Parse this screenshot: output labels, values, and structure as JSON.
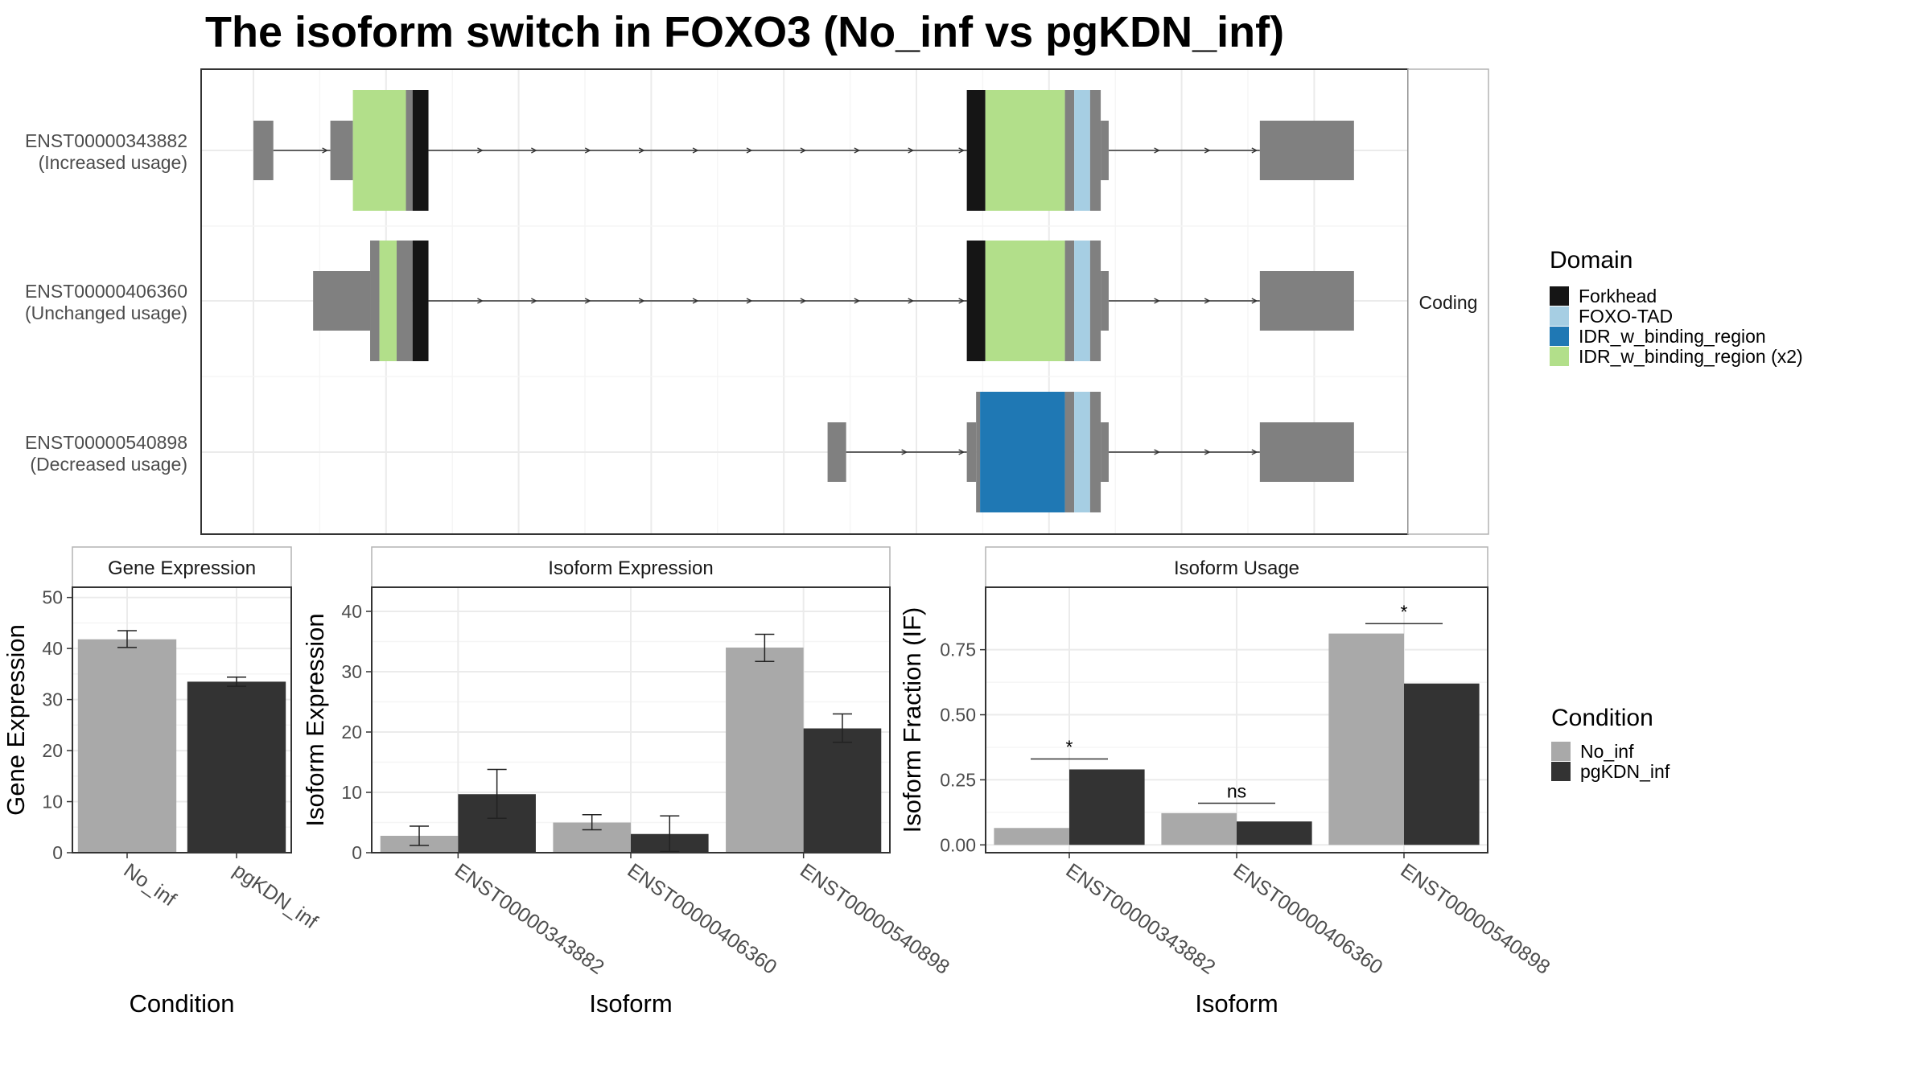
{
  "title": "The isoform switch in FOXO3 (No_inf vs pgKDN_inf)",
  "colors": {
    "exon": "#808080",
    "intron": "#333333",
    "panel_border": "#333333",
    "strip_bg": "#ffffff",
    "grid": "#ebebeb",
    "no_inf": "#a9a9a9",
    "pgkdn_inf": "#333333"
  },
  "structure": {
    "facet_label": "Coding",
    "isoforms": [
      {
        "id": "ENST00000343882",
        "usage": "(Increased usage)",
        "segments": [
          {
            "start": 0.0,
            "end": 1.5,
            "type": "utr"
          },
          {
            "start": 5.8,
            "end": 7.5,
            "type": "utr"
          },
          {
            "start": 7.5,
            "end": 11.5,
            "type": "domain",
            "domain": "IDR_w_binding_region (x2)"
          },
          {
            "start": 11.5,
            "end": 12.0,
            "type": "cds"
          },
          {
            "start": 12.0,
            "end": 13.2,
            "type": "domain",
            "domain": "Forkhead"
          },
          {
            "start": 53.8,
            "end": 55.2,
            "type": "domain",
            "domain": "Forkhead"
          },
          {
            "start": 55.2,
            "end": 61.2,
            "type": "domain",
            "domain": "IDR_w_binding_region (x2)"
          },
          {
            "start": 61.2,
            "end": 61.9,
            "type": "cds"
          },
          {
            "start": 61.9,
            "end": 63.1,
            "type": "domain",
            "domain": "FOXO-TAD"
          },
          {
            "start": 63.1,
            "end": 63.9,
            "type": "cds"
          },
          {
            "start": 63.9,
            "end": 64.5,
            "type": "utr"
          },
          {
            "start": 75.9,
            "end": 83.0,
            "type": "utr"
          }
        ]
      },
      {
        "id": "ENST00000406360",
        "usage": "(Unchanged usage)",
        "segments": [
          {
            "start": 4.5,
            "end": 8.8,
            "type": "utr"
          },
          {
            "start": 8.8,
            "end": 9.5,
            "type": "cds"
          },
          {
            "start": 9.5,
            "end": 10.8,
            "type": "domain",
            "domain": "IDR_w_binding_region (x2)"
          },
          {
            "start": 10.8,
            "end": 12.0,
            "type": "cds"
          },
          {
            "start": 12.0,
            "end": 13.2,
            "type": "domain",
            "domain": "Forkhead"
          },
          {
            "start": 53.8,
            "end": 55.2,
            "type": "domain",
            "domain": "Forkhead"
          },
          {
            "start": 55.2,
            "end": 61.2,
            "type": "domain",
            "domain": "IDR_w_binding_region (x2)"
          },
          {
            "start": 61.2,
            "end": 61.9,
            "type": "cds"
          },
          {
            "start": 61.9,
            "end": 63.1,
            "type": "domain",
            "domain": "FOXO-TAD"
          },
          {
            "start": 63.1,
            "end": 63.9,
            "type": "cds"
          },
          {
            "start": 63.9,
            "end": 64.5,
            "type": "utr"
          },
          {
            "start": 75.9,
            "end": 83.0,
            "type": "utr"
          }
        ]
      },
      {
        "id": "ENST00000540898",
        "usage": "(Decreased usage)",
        "segments": [
          {
            "start": 43.3,
            "end": 44.7,
            "type": "utr"
          },
          {
            "start": 53.8,
            "end": 54.5,
            "type": "utr"
          },
          {
            "start": 54.5,
            "end": 54.8,
            "type": "cds"
          },
          {
            "start": 54.8,
            "end": 61.2,
            "type": "domain",
            "domain": "IDR_w_binding_region"
          },
          {
            "start": 61.2,
            "end": 61.9,
            "type": "cds"
          },
          {
            "start": 61.9,
            "end": 63.1,
            "type": "domain",
            "domain": "FOXO-TAD"
          },
          {
            "start": 63.1,
            "end": 63.9,
            "type": "cds"
          },
          {
            "start": 63.9,
            "end": 64.5,
            "type": "utr"
          },
          {
            "start": 75.9,
            "end": 83.0,
            "type": "utr"
          }
        ]
      }
    ]
  },
  "legend_domain": {
    "title": "Domain",
    "items": [
      {
        "label": "Forkhead",
        "color": "#151515"
      },
      {
        "label": "FOXO-TAD",
        "color": "#a6cee3"
      },
      {
        "label": "IDR_w_binding_region",
        "color": "#1f78b4"
      },
      {
        "label": "IDR_w_binding_region (x2)",
        "color": "#b2df8a"
      }
    ]
  },
  "legend_condition": {
    "title": "Condition",
    "items": [
      {
        "label": "No_inf",
        "color": "#a9a9a9"
      },
      {
        "label": "pgKDN_inf",
        "color": "#333333"
      }
    ]
  },
  "chart_data": [
    {
      "type": "bar",
      "title": "Gene Expression",
      "xlabel": "Condition",
      "ylabel": "Gene Expression",
      "categories": [
        "No_inf",
        "pgKDN_inf"
      ],
      "values": [
        41.8,
        33.5
      ],
      "errors": [
        [
          40.2,
          43.5
        ],
        [
          32.6,
          34.4
        ]
      ],
      "ylim": [
        0,
        52
      ],
      "yticks": [
        0,
        10,
        20,
        30,
        40,
        50
      ]
    },
    {
      "type": "bar",
      "title": "Isoform Expression",
      "xlabel": "Isoform",
      "ylabel": "Isoform Expression",
      "categories": [
        "ENST00000343882",
        "ENST00000406360",
        "ENST00000540898"
      ],
      "series": [
        {
          "name": "No_inf",
          "values": [
            2.8,
            5.0,
            34.0
          ],
          "errors": [
            [
              1.2,
              4.4
            ],
            [
              3.8,
              6.3
            ],
            [
              31.7,
              36.2
            ]
          ]
        },
        {
          "name": "pgKDN_inf",
          "values": [
            9.7,
            3.1,
            20.6
          ],
          "errors": [
            [
              5.7,
              13.8
            ],
            [
              0.2,
              6.1
            ],
            [
              18.3,
              23.0
            ]
          ]
        }
      ],
      "ylim": [
        0,
        44
      ],
      "yticks": [
        0,
        10,
        20,
        30,
        40
      ]
    },
    {
      "type": "bar",
      "title": "Isoform Usage",
      "xlabel": "Isoform",
      "ylabel": "Isoform Fraction (IF)",
      "categories": [
        "ENST00000343882",
        "ENST00000406360",
        "ENST00000540898"
      ],
      "series": [
        {
          "name": "No_inf",
          "values": [
            0.065,
            0.122,
            0.812
          ]
        },
        {
          "name": "pgKDN_inf",
          "values": [
            0.29,
            0.09,
            0.62
          ]
        }
      ],
      "significance": [
        {
          "category": 0,
          "label": "*",
          "y": 0.33
        },
        {
          "category": 1,
          "label": "ns",
          "y": 0.16
        },
        {
          "category": 2,
          "label": "*",
          "y": 0.85
        }
      ],
      "ylim": [
        -0.03,
        0.99
      ],
      "yticks": [
        0.0,
        0.25,
        0.5,
        0.75
      ],
      "ytick_labels": [
        "0.00",
        "0.25",
        "0.50",
        "0.75"
      ]
    }
  ]
}
